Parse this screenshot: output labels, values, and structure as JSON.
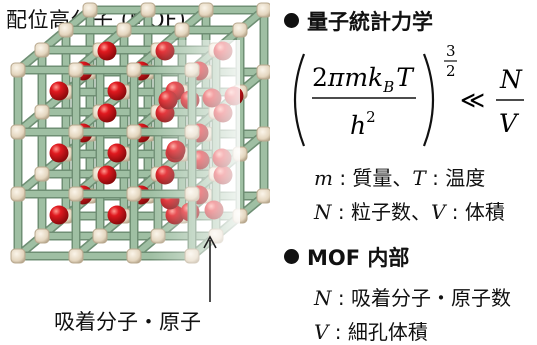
{
  "left": {
    "title": "配位高分子 (MOF)",
    "caption": "吸着分子・原子"
  },
  "right": {
    "section1": {
      "heading": "量子統計力学",
      "formula": {
        "numerator": "2πmk",
        "sub_B": "B",
        "T": "T",
        "denominator": "h",
        "den_exp": "2",
        "exp_num": "3",
        "exp_den": "2",
        "relation": "≪",
        "rhs_num": "N",
        "rhs_den": "V"
      },
      "line1": {
        "v1": "m",
        "t1": " : 質量、",
        "v2": "T",
        "t2": " : 温度"
      },
      "line2": {
        "v1": "N",
        "t1": " : 粒子数、",
        "v2": "V",
        "t2": " : 体積"
      }
    },
    "section2": {
      "heading": "MOF 内部",
      "line1": {
        "v1": "N",
        "t1": " : 吸着分子・原子数"
      },
      "line2": {
        "v1": "V",
        "t1": " : 細孔体積"
      }
    }
  },
  "colors": {
    "rod": "#9fbfa3",
    "rod_edge": "#6f8f74",
    "node": "#e8dcc8",
    "node_edge": "#b8a88e",
    "atom": "#d9151b",
    "atom_highlight": "#ff8a80"
  }
}
